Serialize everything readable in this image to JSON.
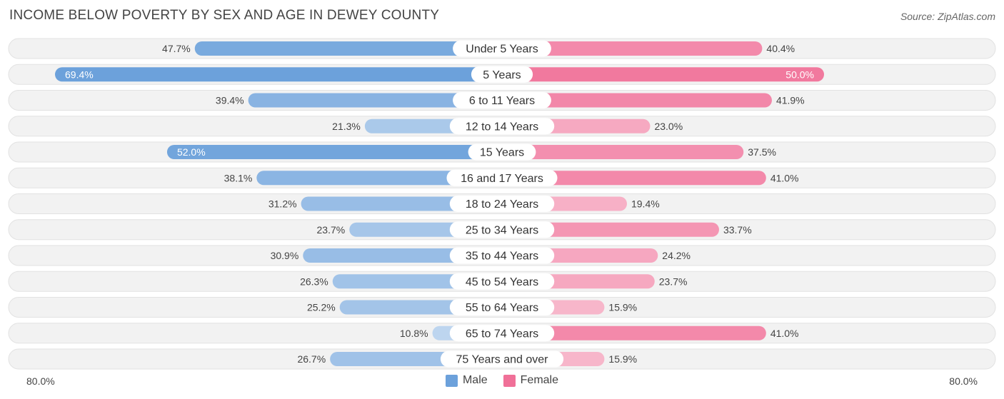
{
  "title": "INCOME BELOW POVERTY BY SEX AND AGE IN DEWEY COUNTY",
  "source": "Source: ZipAtlas.com",
  "colors": {
    "male": "#6ca1db",
    "female": "#f07098",
    "male_light": "#a9c8ec",
    "female_light": "#f6a9c1"
  },
  "chart_data": {
    "type": "bar",
    "orientation": "horizontal-diverging",
    "categories": [
      "Under 5 Years",
      "5 Years",
      "6 to 11 Years",
      "12 to 14 Years",
      "15 Years",
      "16 and 17 Years",
      "18 to 24 Years",
      "25 to 34 Years",
      "35 to 44 Years",
      "45 to 54 Years",
      "55 to 64 Years",
      "65 to 74 Years",
      "75 Years and over"
    ],
    "series": [
      {
        "name": "Male",
        "values": [
          47.7,
          69.4,
          39.4,
          21.3,
          52.0,
          38.1,
          31.2,
          23.7,
          30.9,
          26.3,
          25.2,
          10.8,
          26.7
        ],
        "labels": [
          "47.7%",
          "69.4%",
          "39.4%",
          "21.3%",
          "52.0%",
          "38.1%",
          "31.2%",
          "23.7%",
          "30.9%",
          "26.3%",
          "25.2%",
          "10.8%",
          "26.7%"
        ]
      },
      {
        "name": "Female",
        "values": [
          40.4,
          50.0,
          41.9,
          23.0,
          37.5,
          41.0,
          19.4,
          33.7,
          24.2,
          23.7,
          15.9,
          41.0,
          15.9
        ],
        "labels": [
          "40.4%",
          "50.0%",
          "41.9%",
          "23.0%",
          "37.5%",
          "41.0%",
          "19.4%",
          "33.7%",
          "24.2%",
          "23.7%",
          "15.9%",
          "41.0%",
          "15.9%"
        ]
      }
    ],
    "xlim": [
      -80,
      80
    ],
    "axis_left_label": "80.0%",
    "axis_right_label": "80.0%",
    "legend": [
      "Male",
      "Female"
    ],
    "legend_position": "bottom-center"
  }
}
